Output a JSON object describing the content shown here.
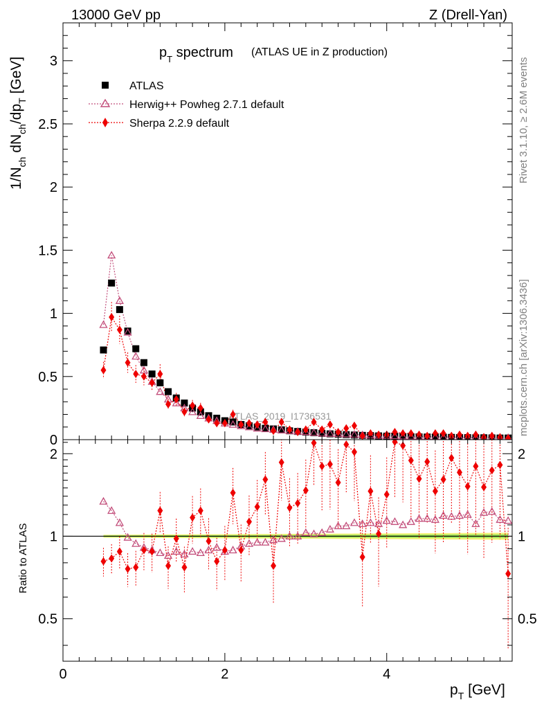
{
  "header": {
    "energy_label": "13000 GeV pp",
    "process_label": "Z (Drell-Yan)"
  },
  "side_text": {
    "rivet": "Rivet 3.1.10, ≥ 2.6M events",
    "mcplots": "mcplots.cern.ch [arXiv:1306.3436]"
  },
  "chart_data": {
    "type": "scatter",
    "title_main": "p",
    "title_main_sub": "T",
    "title_main_rest": " spectrum",
    "title_extra": "(ATLAS UE in Z production)",
    "watermark": "ATLAS_2019_I1736531",
    "xlabel": "p",
    "xlabel_sub": "T",
    "xlabel_unit": " [GeV]",
    "ylabel_parts": [
      "1/N",
      "ch",
      " dN",
      "ch",
      "/dp",
      "T",
      " [GeV]"
    ],
    "ratio_ylabel": "Ratio to ATLAS",
    "xlim": [
      0,
      5.55
    ],
    "ylim": [
      0,
      3.3
    ],
    "ratio_ylim": [
      0.35,
      2.25
    ],
    "x_ticks": [
      "0",
      "2",
      "4"
    ],
    "y_ticks": [
      "0",
      "0.5",
      "1",
      "1.5",
      "2",
      "2.5",
      "3"
    ],
    "ratio_ticks": [
      "0.5",
      "1",
      "2"
    ],
    "legend_position": "top-left",
    "x": [
      0.5,
      0.6,
      0.7,
      0.8,
      0.9,
      1.0,
      1.1,
      1.2,
      1.3,
      1.4,
      1.5,
      1.6,
      1.7,
      1.8,
      1.9,
      2.0,
      2.1,
      2.2,
      2.3,
      2.4,
      2.5,
      2.6,
      2.7,
      2.8,
      2.9,
      3.0,
      3.1,
      3.2,
      3.3,
      3.4,
      3.5,
      3.6,
      3.7,
      3.8,
      3.9,
      4.0,
      4.1,
      4.2,
      4.3,
      4.4,
      4.5,
      4.6,
      4.7,
      4.8,
      4.9,
      5.0,
      5.1,
      5.2,
      5.3,
      5.4,
      5.5
    ],
    "series": [
      {
        "name": "ATLAS",
        "color": "#000000",
        "marker": "square",
        "values": [
          0.71,
          1.24,
          1.03,
          0.86,
          0.72,
          0.61,
          0.52,
          0.45,
          0.38,
          0.33,
          0.29,
          0.25,
          0.22,
          0.19,
          0.17,
          0.15,
          0.14,
          0.12,
          0.11,
          0.1,
          0.09,
          0.085,
          0.078,
          0.07,
          0.065,
          0.06,
          0.055,
          0.05,
          0.046,
          0.043,
          0.04,
          0.037,
          0.034,
          0.032,
          0.03,
          0.028,
          0.026,
          0.024,
          0.023,
          0.022,
          0.021,
          0.02,
          0.019,
          0.018,
          0.017,
          0.016,
          0.015,
          0.015,
          0.014,
          0.013,
          0.013
        ]
      },
      {
        "name": "Herwig++ Powheg 2.7.1 default",
        "color": "#c24d7a",
        "marker": "triangle-open",
        "values": [
          0.91,
          1.46,
          1.1,
          0.85,
          0.66,
          0.55,
          0.46,
          0.38,
          0.32,
          0.29,
          0.25,
          0.22,
          0.19,
          0.17,
          0.15,
          0.13,
          0.12,
          0.11,
          0.1,
          0.09,
          0.085,
          0.08,
          0.075,
          0.07,
          0.065,
          0.062,
          0.056,
          0.051,
          0.049,
          0.047,
          0.044,
          0.042,
          0.038,
          0.036,
          0.034,
          0.032,
          0.03,
          0.028,
          0.026,
          0.025,
          0.024,
          0.023,
          0.022,
          0.021,
          0.02,
          0.019,
          0.018,
          0.018,
          0.017,
          0.016,
          0.016
        ],
        "ratio": [
          1.34,
          1.24,
          1.12,
          0.99,
          0.94,
          0.91,
          0.89,
          0.87,
          0.85,
          0.88,
          0.86,
          0.88,
          0.87,
          0.89,
          0.91,
          0.88,
          0.89,
          0.92,
          0.94,
          0.95,
          0.95,
          0.97,
          0.98,
          1.0,
          1.0,
          1.03,
          1.02,
          1.03,
          1.06,
          1.09,
          1.09,
          1.12,
          1.11,
          1.12,
          1.11,
          1.14,
          1.13,
          1.1,
          1.13,
          1.16,
          1.16,
          1.15,
          1.19,
          1.18,
          1.19,
          1.2,
          1.11,
          1.22,
          1.23,
          1.15,
          1.14
        ]
      },
      {
        "name": "Sherpa 2.2.9 default",
        "color": "#ee0000",
        "marker": "diamond",
        "values": [
          0.55,
          0.97,
          0.87,
          0.61,
          0.52,
          0.5,
          0.45,
          0.52,
          0.28,
          0.32,
          0.22,
          0.27,
          0.25,
          0.16,
          0.13,
          0.13,
          0.2,
          0.12,
          0.13,
          0.12,
          0.14,
          0.07,
          0.14,
          0.08,
          0.06,
          0.08,
          0.14,
          0.08,
          0.12,
          0.06,
          0.09,
          0.11,
          0.03,
          0.05,
          0.04,
          0.04,
          0.06,
          0.05,
          0.05,
          0.04,
          0.03,
          0.05,
          0.05,
          0.03,
          0.04,
          0.03,
          0.04,
          0.02,
          0.03,
          0.02,
          0.01
        ],
        "ratio": [
          0.81,
          0.83,
          0.88,
          0.76,
          0.77,
          0.89,
          0.88,
          1.24,
          0.78,
          0.98,
          0.77,
          1.17,
          1.24,
          0.96,
          0.81,
          0.89,
          1.44,
          0.89,
          1.13,
          1.28,
          1.61,
          0.78,
          1.86,
          1.27,
          1.32,
          1.47,
          2.19,
          1.8,
          1.83,
          1.57,
          2.16,
          2.03,
          0.84,
          1.46,
          1.02,
          1.42,
          2.21,
          2.14,
          1.89,
          1.62,
          1.87,
          1.46,
          1.61,
          1.93,
          1.71,
          1.52,
          1.8,
          1.51,
          1.74,
          1.82,
          0.73
        ]
      }
    ]
  }
}
